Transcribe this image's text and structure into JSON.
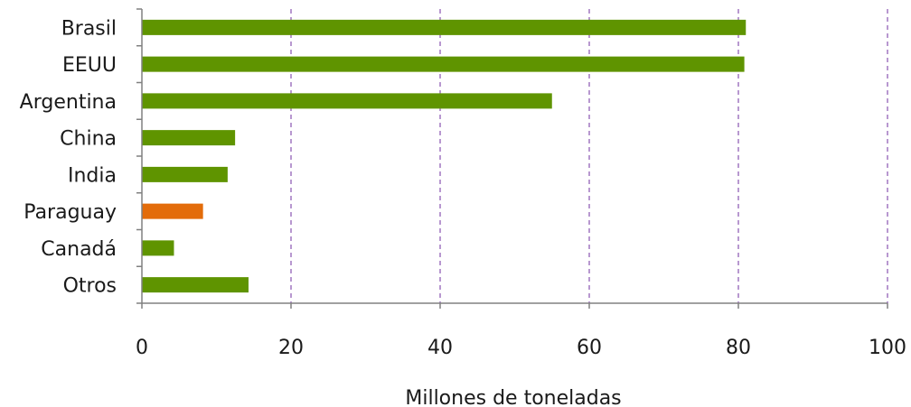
{
  "chart_data": {
    "type": "bar",
    "orientation": "horizontal",
    "categories": [
      "Brasil",
      "EEUU",
      "Argentina",
      "China",
      "India",
      "Paraguay",
      "Canadá",
      "Otros"
    ],
    "values": [
      81,
      80.8,
      55,
      12.5,
      11.5,
      8.2,
      4.3,
      14.3
    ],
    "highlight_category": "Paraguay",
    "xlabel": "Millones de toneladas",
    "ylabel": "",
    "xlim": [
      0,
      100
    ],
    "xticks": [
      "0",
      "20",
      "40",
      "60",
      "80",
      "100"
    ],
    "grid": "vertical dashed",
    "legend": "none"
  },
  "colors": {
    "bar_default": "#5f9400",
    "bar_highlight": "#e36c0a",
    "gridline": "#7030a0",
    "axis": "#808080"
  }
}
